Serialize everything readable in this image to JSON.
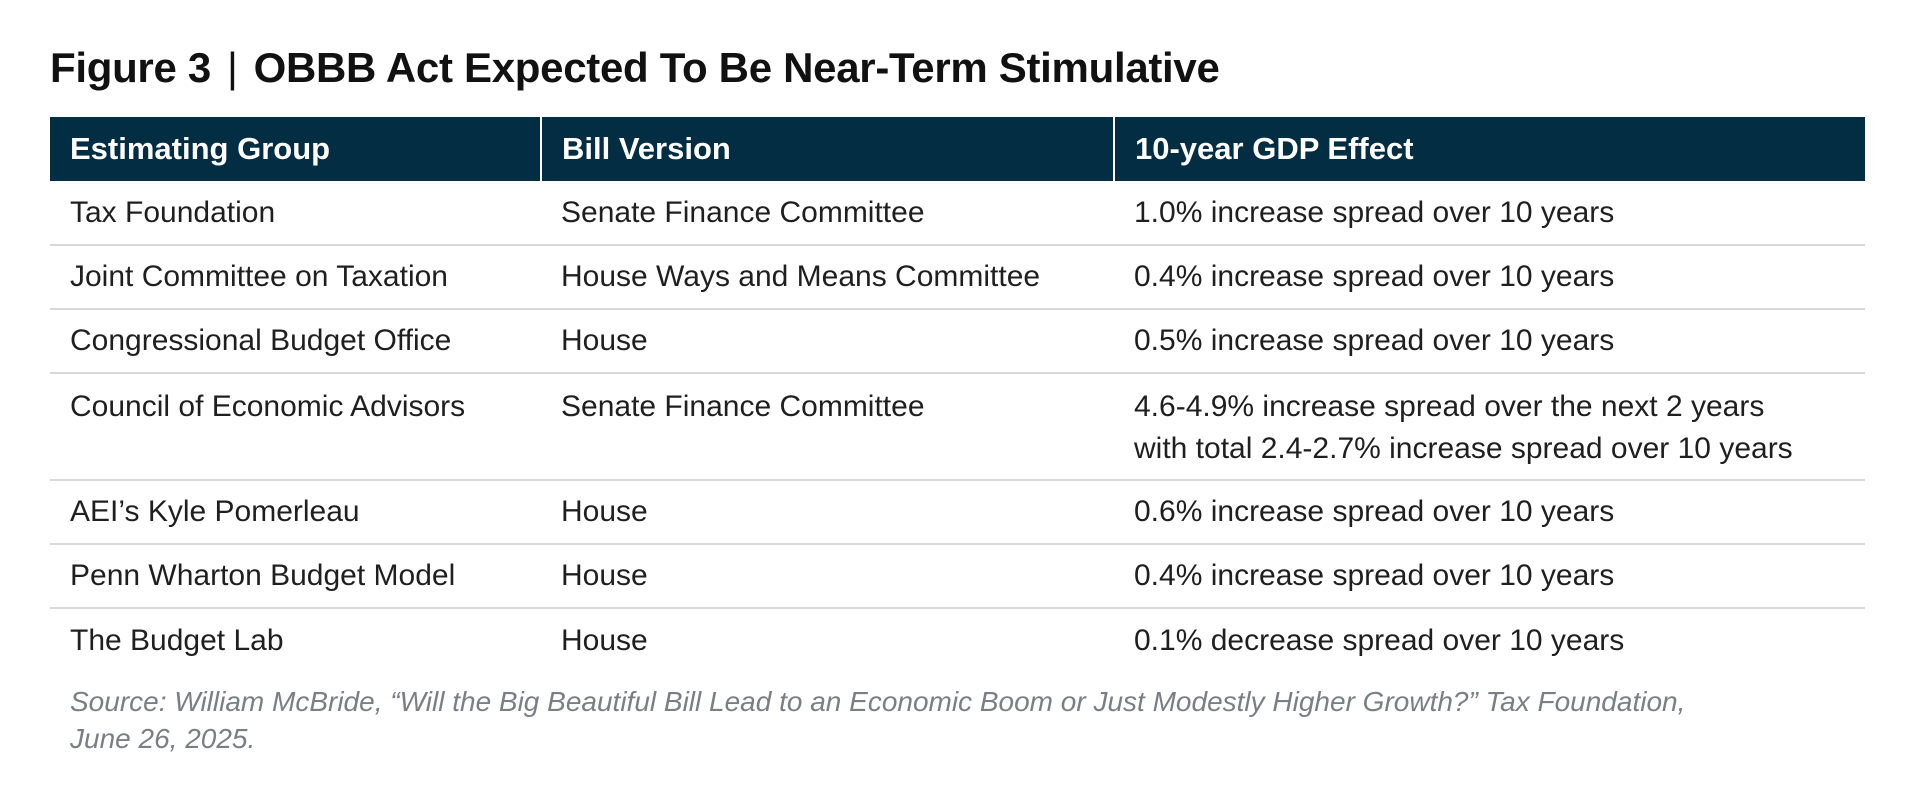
{
  "figure": {
    "label": "Figure 3",
    "separator": "|",
    "title": "OBBB Act Expected To Be Near-Term Stimulative"
  },
  "table": {
    "headers": [
      "Estimating Group",
      "Bill Version",
      "10-year GDP Effect"
    ],
    "rows": [
      {
        "group": "Tax Foundation",
        "version": "Senate Finance Committee",
        "effect": [
          "1.0% increase spread over 10 years"
        ]
      },
      {
        "group": "Joint Committee on Taxation",
        "version": "House Ways and Means Committee",
        "effect": [
          "0.4% increase spread over 10 years"
        ]
      },
      {
        "group": "Congressional Budget Office",
        "version": "House",
        "effect": [
          "0.5% increase spread over 10 years"
        ]
      },
      {
        "group": "Council of Economic Advisors",
        "version": "Senate Finance Committee",
        "effect": [
          "4.6-4.9% increase spread over the next 2 years",
          "with total 2.4-2.7% increase spread over 10 years"
        ]
      },
      {
        "group": "AEI’s Kyle Pomerleau",
        "version": "House",
        "effect": [
          "0.6% increase spread over 10 years"
        ]
      },
      {
        "group": "Penn Wharton Budget Model",
        "version": "House",
        "effect": [
          "0.4% increase spread over 10 years"
        ]
      },
      {
        "group": "The Budget Lab",
        "version": "House",
        "effect": [
          "0.1% decrease spread over 10 years"
        ]
      }
    ]
  },
  "source": {
    "line1": "Source: William McBride, “Will the Big Beautiful Bill Lead to an Economic Boom or Just Modestly Higher Growth?” Tax Foundation,",
    "line2": "June 26, 2025."
  },
  "colors": {
    "header_bg": "#032d42",
    "header_text": "#ffffff",
    "row_divider": "#d9d9d9",
    "source_text": "#7a7f86"
  }
}
